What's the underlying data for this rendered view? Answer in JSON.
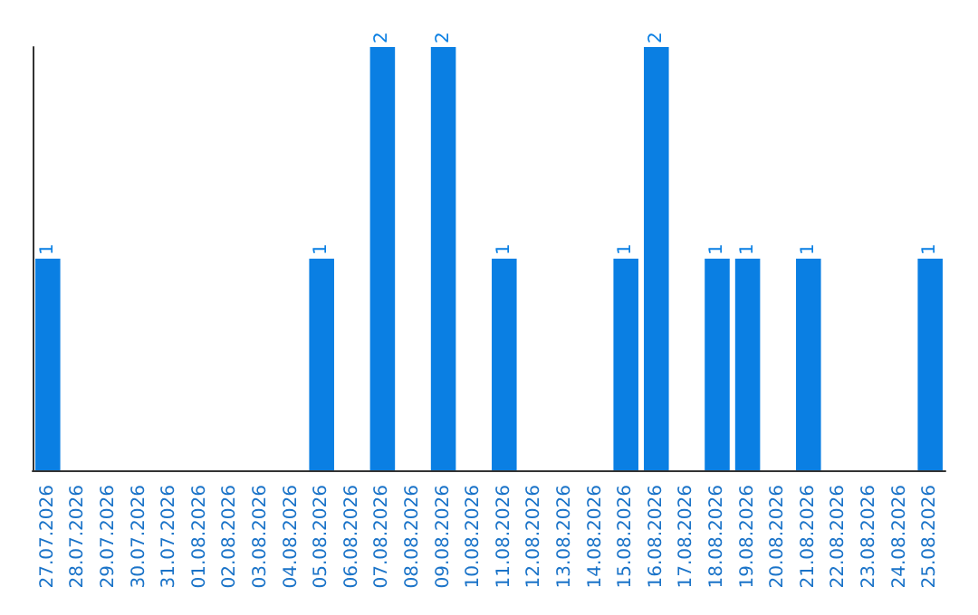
{
  "chart_data": {
    "type": "bar",
    "categories": [
      "27.07.2026",
      "28.07.2026",
      "29.07.2026",
      "30.07.2026",
      "31.07.2026",
      "01.08.2026",
      "02.08.2026",
      "03.08.2026",
      "04.08.2026",
      "05.08.2026",
      "06.08.2026",
      "07.08.2026",
      "08.08.2026",
      "09.08.2026",
      "10.08.2026",
      "11.08.2026",
      "12.08.2026",
      "13.08.2026",
      "14.08.2026",
      "15.08.2026",
      "16.08.2026",
      "17.08.2026",
      "18.08.2026",
      "19.08.2026",
      "20.08.2026",
      "21.08.2026",
      "22.08.2026",
      "23.08.2026",
      "24.08.2026",
      "25.08.2026"
    ],
    "values": [
      1,
      0,
      0,
      0,
      0,
      0,
      0,
      0,
      0,
      1,
      0,
      2,
      0,
      2,
      0,
      1,
      0,
      0,
      0,
      1,
      2,
      0,
      1,
      1,
      0,
      1,
      0,
      0,
      0,
      1
    ],
    "value_labels": [
      "1",
      null,
      null,
      null,
      null,
      null,
      null,
      null,
      null,
      "1",
      null,
      "2",
      null,
      "2",
      null,
      "1",
      null,
      null,
      null,
      "1",
      "2",
      null,
      "1",
      "1",
      null,
      "1",
      null,
      null,
      null,
      "1"
    ],
    "color": "#0a7fe3",
    "grid": false,
    "tick_labels": "x"
  }
}
